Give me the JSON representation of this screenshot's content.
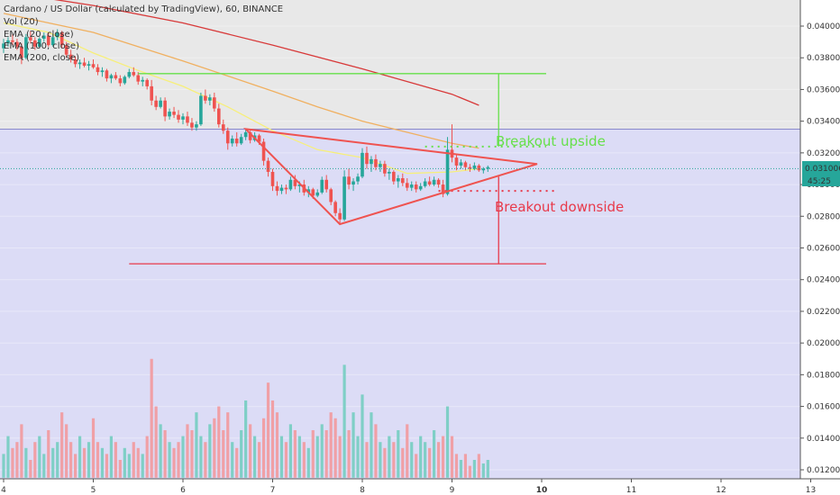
{
  "legend": {
    "title": "Cardano / US Dollar (calculated by TradingView), 60, BINANCE",
    "vol": "Vol (20)",
    "ema20": "EMA (20, close)",
    "ema100": "EMA (100, close)",
    "ema200": "EMA (200, close)"
  },
  "price_tag": {
    "value": "0.031006",
    "timer": "45:25",
    "color": "#26a69a"
  },
  "annotations": {
    "up": {
      "text": "Breakout upside",
      "color": "#66e04a"
    },
    "down": {
      "text": "Breakout downside",
      "color": "#e8394a"
    }
  },
  "colors": {
    "up_candle": "#26a69a",
    "down_candle": "#ef5350",
    "up_volume": "#7fcfc6",
    "down_volume": "#f0a0a6",
    "ema20": "#f7ef7a",
    "ema100": "#f0b060",
    "ema200": "#d83a3a",
    "shade_top": "#e8e8e8",
    "shade_bottom": "#dcdcf6",
    "triangle": "#ef5350"
  },
  "chart_data": {
    "type": "candlestick",
    "x_ticks": [
      "4",
      "5",
      "6",
      "7",
      "8",
      "9",
      "10",
      "11",
      "12",
      "13"
    ],
    "y_ticks": [
      "0.040000",
      "0.038000",
      "0.036000",
      "0.034000",
      "0.032000",
      "0.030000",
      "0.028000",
      "0.026000",
      "0.024000",
      "0.022000",
      "0.020000",
      "0.018000",
      "0.016000",
      "0.014000",
      "0.012000"
    ],
    "ylim": [
      0.0115,
      0.0413
    ],
    "xlim": [
      4.0,
      13.0
    ],
    "current_price": 0.031006,
    "target_up": 0.037,
    "target_down": 0.025,
    "dotted_upper": 0.0324,
    "dotted_lower": 0.0296,
    "shade_boundary": 0.0335,
    "triangle": {
      "upper_line": [
        [
          6.7,
          0.0335
        ],
        [
          9.95,
          0.0313
        ]
      ],
      "lower_line": [
        [
          7.75,
          0.0275
        ],
        [
          9.95,
          0.0313
        ]
      ]
    },
    "measured_move": {
      "x": 9.52,
      "top": 0.037,
      "bottom": 0.025,
      "up_from": 0.0324,
      "down_from": 0.0305
    },
    "ema20": [
      [
        4.0,
        0.0402
      ],
      [
        4.5,
        0.0396
      ],
      [
        5.0,
        0.0383
      ],
      [
        5.5,
        0.0372
      ],
      [
        6.0,
        0.0362
      ],
      [
        6.5,
        0.0349
      ],
      [
        7.0,
        0.0334
      ],
      [
        7.5,
        0.0322
      ],
      [
        8.0,
        0.0317
      ],
      [
        8.5,
        0.0307
      ],
      [
        9.0,
        0.0308
      ],
      [
        9.3,
        0.031
      ]
    ],
    "ema100": [
      [
        4.0,
        0.0408
      ],
      [
        5.0,
        0.0396
      ],
      [
        6.0,
        0.0378
      ],
      [
        7.0,
        0.0359
      ],
      [
        7.5,
        0.0349
      ],
      [
        8.0,
        0.034
      ],
      [
        8.5,
        0.0333
      ],
      [
        9.0,
        0.0326
      ],
      [
        9.3,
        0.0323
      ]
    ],
    "ema200": [
      [
        4.2,
        0.042
      ],
      [
        5.0,
        0.0413
      ],
      [
        6.0,
        0.0402
      ],
      [
        7.0,
        0.0388
      ],
      [
        8.0,
        0.0373
      ],
      [
        8.5,
        0.0365
      ],
      [
        9.0,
        0.0357
      ],
      [
        9.3,
        0.035
      ]
    ],
    "candles": [
      [
        4.0,
        0.0386,
        0.0392,
        0.0383,
        0.0389
      ],
      [
        4.05,
        0.0389,
        0.0393,
        0.0387,
        0.0391
      ],
      [
        4.1,
        0.0391,
        0.0395,
        0.0388,
        0.039
      ],
      [
        4.15,
        0.039,
        0.0392,
        0.0385,
        0.0387
      ],
      [
        4.2,
        0.0387,
        0.0389,
        0.0376,
        0.038
      ],
      [
        4.25,
        0.038,
        0.0395,
        0.0379,
        0.0393
      ],
      [
        4.3,
        0.0393,
        0.0397,
        0.0389,
        0.0391
      ],
      [
        4.35,
        0.0391,
        0.0393,
        0.0385,
        0.0387
      ],
      [
        4.4,
        0.0387,
        0.0393,
        0.0386,
        0.0392
      ],
      [
        4.45,
        0.0392,
        0.0396,
        0.039,
        0.0394
      ],
      [
        4.5,
        0.0394,
        0.0396,
        0.0387,
        0.0388
      ],
      [
        4.55,
        0.0388,
        0.0395,
        0.0387,
        0.0393
      ],
      [
        4.6,
        0.0393,
        0.0398,
        0.0391,
        0.0396
      ],
      [
        4.65,
        0.0396,
        0.0397,
        0.0386,
        0.0388
      ],
      [
        4.7,
        0.0388,
        0.039,
        0.038,
        0.0382
      ],
      [
        4.75,
        0.0382,
        0.0385,
        0.0377,
        0.0379
      ],
      [
        4.8,
        0.0379,
        0.0381,
        0.0374,
        0.0376
      ],
      [
        4.85,
        0.0376,
        0.0379,
        0.0373,
        0.0377
      ],
      [
        4.9,
        0.0377,
        0.038,
        0.0374,
        0.0375
      ],
      [
        4.95,
        0.0375,
        0.0378,
        0.0372,
        0.0376
      ],
      [
        5.0,
        0.0376,
        0.0379,
        0.0373,
        0.0374
      ],
      [
        5.05,
        0.0374,
        0.0376,
        0.0369,
        0.0371
      ],
      [
        5.1,
        0.0371,
        0.0374,
        0.0368,
        0.0372
      ],
      [
        5.15,
        0.0372,
        0.0373,
        0.0365,
        0.0367
      ],
      [
        5.2,
        0.0367,
        0.037,
        0.0364,
        0.0369
      ],
      [
        5.25,
        0.0369,
        0.0371,
        0.0366,
        0.0367
      ],
      [
        5.3,
        0.0367,
        0.0369,
        0.0362,
        0.0364
      ],
      [
        5.35,
        0.0364,
        0.0369,
        0.0363,
        0.0368
      ],
      [
        5.4,
        0.0368,
        0.0373,
        0.0367,
        0.0371
      ],
      [
        5.45,
        0.0371,
        0.0374,
        0.0368,
        0.0369
      ],
      [
        5.5,
        0.0369,
        0.0371,
        0.0363,
        0.0365
      ],
      [
        5.55,
        0.0365,
        0.0368,
        0.0362,
        0.0366
      ],
      [
        5.6,
        0.0366,
        0.0367,
        0.036,
        0.0362
      ],
      [
        5.65,
        0.0362,
        0.0366,
        0.035,
        0.0353
      ],
      [
        5.7,
        0.0353,
        0.0356,
        0.0347,
        0.0349
      ],
      [
        5.75,
        0.0349,
        0.0355,
        0.0348,
        0.0353
      ],
      [
        5.8,
        0.0353,
        0.0355,
        0.034,
        0.0343
      ],
      [
        5.85,
        0.0343,
        0.0348,
        0.0341,
        0.0346
      ],
      [
        5.9,
        0.0346,
        0.0349,
        0.0342,
        0.0344
      ],
      [
        5.95,
        0.0344,
        0.0347,
        0.0339,
        0.0341
      ],
      [
        6.0,
        0.0341,
        0.0345,
        0.0338,
        0.0343
      ],
      [
        6.05,
        0.0343,
        0.0346,
        0.0337,
        0.0339
      ],
      [
        6.1,
        0.0339,
        0.0342,
        0.0334,
        0.0336
      ],
      [
        6.15,
        0.0336,
        0.034,
        0.0334,
        0.0338
      ],
      [
        6.2,
        0.0338,
        0.0358,
        0.0337,
        0.0356
      ],
      [
        6.25,
        0.0356,
        0.036,
        0.0351,
        0.0353
      ],
      [
        6.3,
        0.0353,
        0.0357,
        0.035,
        0.0355
      ],
      [
        6.35,
        0.0355,
        0.0358,
        0.0346,
        0.0348
      ],
      [
        6.4,
        0.0348,
        0.0351,
        0.0336,
        0.0338
      ],
      [
        6.45,
        0.0338,
        0.0341,
        0.0332,
        0.0334
      ],
      [
        6.5,
        0.0334,
        0.0336,
        0.0322,
        0.0326
      ],
      [
        6.55,
        0.0326,
        0.0331,
        0.0324,
        0.0329
      ],
      [
        6.6,
        0.0329,
        0.0333,
        0.0324,
        0.0326
      ],
      [
        6.65,
        0.0326,
        0.0332,
        0.0325,
        0.033
      ],
      [
        6.7,
        0.033,
        0.0335,
        0.0328,
        0.0333
      ],
      [
        6.75,
        0.0333,
        0.0334,
        0.0326,
        0.0328
      ],
      [
        6.8,
        0.0328,
        0.0333,
        0.0327,
        0.0331
      ],
      [
        6.85,
        0.0331,
        0.0332,
        0.0325,
        0.0327
      ],
      [
        6.9,
        0.0327,
        0.0329,
        0.0312,
        0.0315
      ],
      [
        6.95,
        0.0315,
        0.0317,
        0.0305,
        0.0308
      ],
      [
        7.0,
        0.0308,
        0.031,
        0.0296,
        0.0299
      ],
      [
        7.05,
        0.0299,
        0.0302,
        0.0293,
        0.0296
      ],
      [
        7.1,
        0.0296,
        0.03,
        0.0294,
        0.0298
      ],
      [
        7.15,
        0.0298,
        0.03,
        0.0294,
        0.0297
      ],
      [
        7.2,
        0.0297,
        0.0305,
        0.0296,
        0.0303
      ],
      [
        7.25,
        0.0303,
        0.0306,
        0.0297,
        0.0299
      ],
      [
        7.3,
        0.0299,
        0.0302,
        0.0295,
        0.03
      ],
      [
        7.35,
        0.03,
        0.0303,
        0.0293,
        0.0295
      ],
      [
        7.4,
        0.0295,
        0.0299,
        0.0292,
        0.0297
      ],
      [
        7.45,
        0.0297,
        0.0298,
        0.0291,
        0.0293
      ],
      [
        7.5,
        0.0293,
        0.0297,
        0.0292,
        0.0295
      ],
      [
        7.55,
        0.0295,
        0.0305,
        0.0294,
        0.0303
      ],
      [
        7.6,
        0.0303,
        0.0306,
        0.0295,
        0.0297
      ],
      [
        7.65,
        0.0297,
        0.0298,
        0.0287,
        0.0289
      ],
      [
        7.7,
        0.0289,
        0.029,
        0.028,
        0.0282
      ],
      [
        7.75,
        0.0282,
        0.0285,
        0.0275,
        0.0278
      ],
      [
        7.8,
        0.0278,
        0.0309,
        0.0277,
        0.0305
      ],
      [
        7.85,
        0.0305,
        0.031,
        0.0297,
        0.03
      ],
      [
        7.9,
        0.03,
        0.0304,
        0.0296,
        0.0302
      ],
      [
        7.95,
        0.0302,
        0.0307,
        0.03,
        0.0305
      ],
      [
        8.0,
        0.0305,
        0.0323,
        0.0304,
        0.032
      ],
      [
        8.05,
        0.032,
        0.0324,
        0.031,
        0.0313
      ],
      [
        8.1,
        0.0313,
        0.0318,
        0.0308,
        0.0316
      ],
      [
        8.15,
        0.0316,
        0.0319,
        0.0309,
        0.0311
      ],
      [
        8.2,
        0.0311,
        0.0315,
        0.0308,
        0.0313
      ],
      [
        8.25,
        0.0313,
        0.0315,
        0.0305,
        0.0307
      ],
      [
        8.3,
        0.0307,
        0.031,
        0.0303,
        0.0308
      ],
      [
        8.35,
        0.0308,
        0.0309,
        0.03,
        0.0302
      ],
      [
        8.4,
        0.0302,
        0.0306,
        0.0298,
        0.0304
      ],
      [
        8.45,
        0.0304,
        0.0307,
        0.0299,
        0.0301
      ],
      [
        8.5,
        0.0301,
        0.0304,
        0.0296,
        0.0298
      ],
      [
        8.55,
        0.0298,
        0.0302,
        0.0296,
        0.03
      ],
      [
        8.6,
        0.03,
        0.0302,
        0.0295,
        0.0297
      ],
      [
        8.65,
        0.0297,
        0.0301,
        0.0296,
        0.0299
      ],
      [
        8.7,
        0.0299,
        0.0304,
        0.0298,
        0.0302
      ],
      [
        8.75,
        0.0302,
        0.0305,
        0.0299,
        0.03
      ],
      [
        8.8,
        0.03,
        0.0305,
        0.0299,
        0.0303
      ],
      [
        8.85,
        0.0303,
        0.0304,
        0.0298,
        0.03
      ],
      [
        8.9,
        0.03,
        0.0303,
        0.0292,
        0.0294
      ],
      [
        8.95,
        0.0294,
        0.033,
        0.0293,
        0.0322
      ],
      [
        9.0,
        0.0322,
        0.0338,
        0.0314,
        0.0317
      ],
      [
        9.05,
        0.0317,
        0.0319,
        0.0309,
        0.0312
      ],
      [
        9.1,
        0.0312,
        0.0316,
        0.031,
        0.0314
      ],
      [
        9.15,
        0.0314,
        0.0315,
        0.0309,
        0.0311
      ],
      [
        9.2,
        0.0311,
        0.0313,
        0.0308,
        0.031
      ],
      [
        9.25,
        0.031,
        0.0314,
        0.0309,
        0.0312
      ],
      [
        9.3,
        0.0312,
        0.0313,
        0.0308,
        0.0309
      ],
      [
        9.35,
        0.0309,
        0.0311,
        0.0307,
        0.031
      ],
      [
        9.4,
        0.031,
        0.0312,
        0.0308,
        0.0311
      ]
    ],
    "volume_max_price": 0.019,
    "volume_base_price": 0.0115,
    "volume": [
      0.2,
      0.35,
      0.25,
      0.3,
      0.45,
      0.25,
      0.15,
      0.3,
      0.35,
      0.2,
      0.4,
      0.25,
      0.3,
      0.55,
      0.45,
      0.3,
      0.2,
      0.35,
      0.25,
      0.3,
      0.5,
      0.3,
      0.25,
      0.2,
      0.35,
      0.3,
      0.15,
      0.25,
      0.2,
      0.3,
      0.25,
      0.2,
      0.35,
      1.0,
      0.6,
      0.45,
      0.4,
      0.3,
      0.25,
      0.3,
      0.35,
      0.45,
      0.4,
      0.55,
      0.35,
      0.3,
      0.45,
      0.5,
      0.6,
      0.4,
      0.55,
      0.3,
      0.25,
      0.4,
      0.65,
      0.45,
      0.35,
      0.3,
      0.5,
      0.8,
      0.65,
      0.55,
      0.35,
      0.3,
      0.45,
      0.4,
      0.35,
      0.3,
      0.25,
      0.4,
      0.35,
      0.45,
      0.4,
      0.55,
      0.5,
      0.35,
      0.95,
      0.4,
      0.55,
      0.35,
      0.7,
      0.3,
      0.55,
      0.45,
      0.3,
      0.25,
      0.35,
      0.3,
      0.4,
      0.25,
      0.45,
      0.3,
      0.2,
      0.35,
      0.3,
      0.25,
      0.4,
      0.3,
      0.35,
      0.6,
      0.35,
      0.2,
      0.15,
      0.2,
      0.1,
      0.15,
      0.2,
      0.12,
      0.15
    ]
  }
}
